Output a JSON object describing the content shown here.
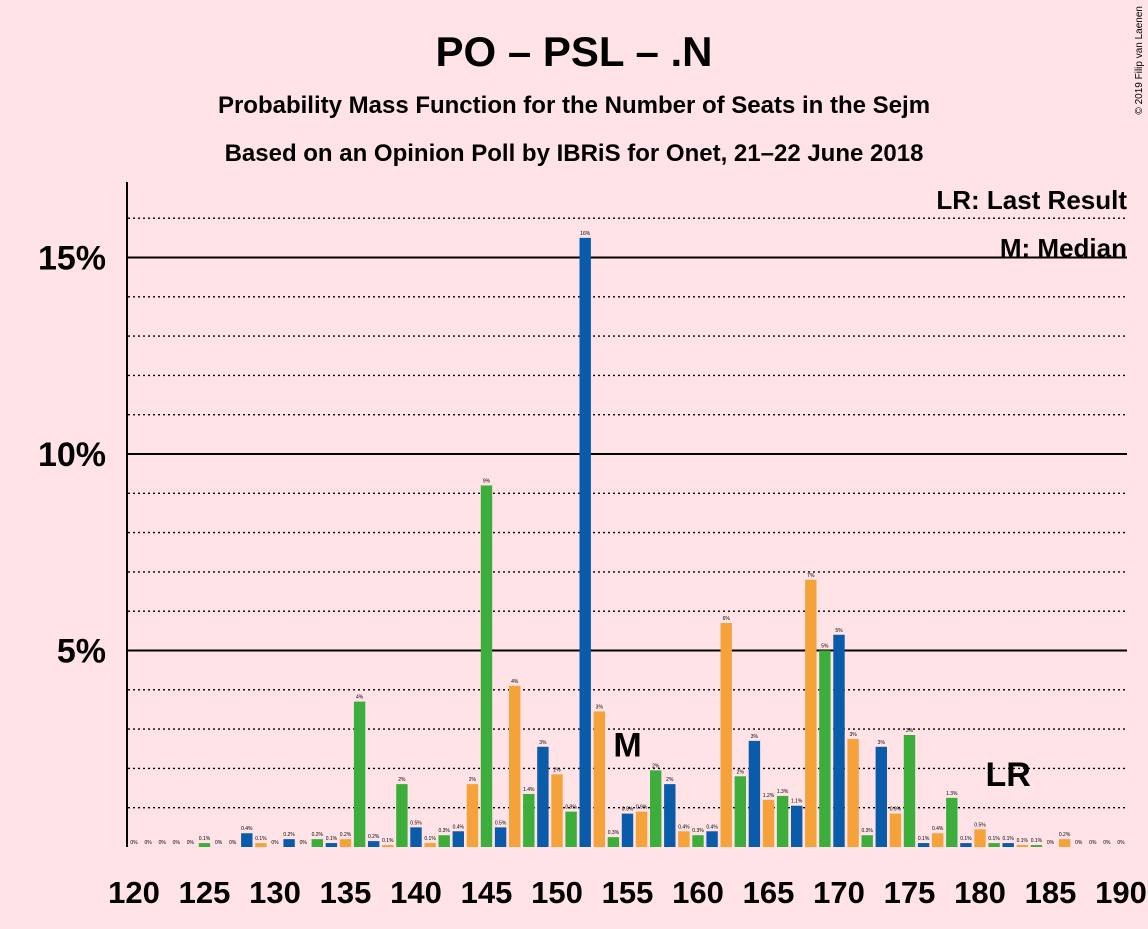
{
  "chart_data": {
    "type": "bar",
    "title": "PO – PSL – .N",
    "subtitle": "Probability Mass Function for the Number of Seats in the Sejm",
    "subtitle2": "Based on an Opinion Poll by IBRiS for Onet, 21–22 June 2018",
    "copyright": "© 2019 Filip van Laenen",
    "legend": {
      "lr": "LR: Last Result",
      "m": "M: Median",
      "placement": "top-right"
    },
    "ylim": [
      0,
      17
    ],
    "xlim": [
      120,
      190
    ],
    "grid": true,
    "y_ticks": [
      {
        "value": 5,
        "label": "5%"
      },
      {
        "value": 10,
        "label": "10%"
      },
      {
        "value": 15,
        "label": "15%"
      }
    ],
    "x_ticks": [
      {
        "value": 120,
        "label": "120"
      },
      {
        "value": 125,
        "label": "125"
      },
      {
        "value": 130,
        "label": "130"
      },
      {
        "value": 135,
        "label": "135"
      },
      {
        "value": 140,
        "label": "140"
      },
      {
        "value": 145,
        "label": "145"
      },
      {
        "value": 150,
        "label": "150"
      },
      {
        "value": 155,
        "label": "155"
      },
      {
        "value": 160,
        "label": "160"
      },
      {
        "value": 165,
        "label": "165"
      },
      {
        "value": 170,
        "label": "170"
      },
      {
        "value": 175,
        "label": "175"
      },
      {
        "value": 180,
        "label": "180"
      },
      {
        "value": 185,
        "label": "185"
      },
      {
        "value": 190,
        "label": "190"
      }
    ],
    "colors": {
      "blue": "#0A5CAA",
      "orange": "#F5A23B",
      "green": "#3DAE3B",
      "background": "#FFE3E6"
    },
    "series": [
      {
        "x": 120,
        "value": 0,
        "label": "0%",
        "color": "blue"
      },
      {
        "x": 121,
        "value": 0,
        "label": "0%",
        "color": "orange"
      },
      {
        "x": 122,
        "value": 0,
        "label": "0%",
        "color": "green"
      },
      {
        "x": 123,
        "value": 0,
        "label": "0%",
        "color": "blue"
      },
      {
        "x": 124,
        "value": 0,
        "label": "0%",
        "color": "orange"
      },
      {
        "x": 125,
        "value": 0.1,
        "label": "0.1%",
        "color": "green"
      },
      {
        "x": 126,
        "value": 0,
        "label": "0%",
        "color": "blue"
      },
      {
        "x": 127,
        "value": 0,
        "label": "0%",
        "color": "orange"
      },
      {
        "x": 128,
        "value": 0.35,
        "label": "0.4%",
        "color": "blue"
      },
      {
        "x": 129,
        "value": 0.1,
        "label": "0.1%",
        "color": "orange"
      },
      {
        "x": 130,
        "value": 0,
        "label": "0%",
        "color": "green"
      },
      {
        "x": 131,
        "value": 0.2,
        "label": "0.2%",
        "color": "blue"
      },
      {
        "x": 132,
        "value": 0,
        "label": "0%",
        "color": "orange"
      },
      {
        "x": 133,
        "value": 0.2,
        "label": "0.2%",
        "color": "green"
      },
      {
        "x": 134,
        "value": 0.1,
        "label": "0.1%",
        "color": "blue"
      },
      {
        "x": 135,
        "value": 0.2,
        "label": "0.2%",
        "color": "orange"
      },
      {
        "x": 136,
        "value": 3.7,
        "label": "4%",
        "color": "green"
      },
      {
        "x": 137,
        "value": 0.15,
        "label": "0.2%",
        "color": "blue"
      },
      {
        "x": 138,
        "value": 0.05,
        "label": "0.1%",
        "color": "orange"
      },
      {
        "x": 139,
        "value": 1.6,
        "label": "2%",
        "color": "green"
      },
      {
        "x": 140,
        "value": 0.5,
        "label": "0.5%",
        "color": "blue"
      },
      {
        "x": 141,
        "value": 0.1,
        "label": "0.1%",
        "color": "orange"
      },
      {
        "x": 142,
        "value": 0.3,
        "label": "0.3%",
        "color": "green"
      },
      {
        "x": 143,
        "value": 0.4,
        "label": "0.4%",
        "color": "blue"
      },
      {
        "x": 144,
        "value": 1.6,
        "label": "2%",
        "color": "orange"
      },
      {
        "x": 145,
        "value": 9.2,
        "label": "9%",
        "color": "green"
      },
      {
        "x": 146,
        "value": 0.5,
        "label": "0.5%",
        "color": "blue"
      },
      {
        "x": 147,
        "value": 4.1,
        "label": "4%",
        "color": "orange"
      },
      {
        "x": 148,
        "value": 1.35,
        "label": "1.4%",
        "color": "green"
      },
      {
        "x": 149,
        "value": 2.55,
        "label": "3%",
        "color": "blue"
      },
      {
        "x": 150,
        "value": 1.85,
        "label": "2%",
        "color": "orange"
      },
      {
        "x": 151,
        "value": 0.9,
        "label": "0.9%",
        "color": "green"
      },
      {
        "x": 152,
        "value": 15.5,
        "label": "16%",
        "color": "blue"
      },
      {
        "x": 153,
        "value": 3.45,
        "label": "3%",
        "color": "orange"
      },
      {
        "x": 154,
        "value": 0.25,
        "label": "0.3%",
        "color": "green"
      },
      {
        "x": 155,
        "value": 0.85,
        "label": "0.9%",
        "color": "blue"
      },
      {
        "x": 156,
        "value": 0.9,
        "label": "0.9%",
        "color": "orange"
      },
      {
        "x": 157,
        "value": 1.95,
        "label": "2%",
        "color": "green"
      },
      {
        "x": 158,
        "value": 1.6,
        "label": "2%",
        "color": "blue"
      },
      {
        "x": 159,
        "value": 0.4,
        "label": "0.4%",
        "color": "orange"
      },
      {
        "x": 160,
        "value": 0.3,
        "label": "0.3%",
        "color": "green"
      },
      {
        "x": 161,
        "value": 0.4,
        "label": "0.4%",
        "color": "blue"
      },
      {
        "x": 162,
        "value": 5.7,
        "label": "6%",
        "color": "orange"
      },
      {
        "x": 163,
        "value": 1.8,
        "label": "2%",
        "color": "green"
      },
      {
        "x": 164,
        "value": 2.7,
        "label": "3%",
        "color": "blue"
      },
      {
        "x": 165,
        "value": 1.2,
        "label": "1.2%",
        "color": "orange"
      },
      {
        "x": 166,
        "value": 1.3,
        "label": "1.3%",
        "color": "green"
      },
      {
        "x": 167,
        "value": 1.05,
        "label": "1.1%",
        "color": "blue"
      },
      {
        "x": 168,
        "value": 6.8,
        "label": "7%",
        "color": "orange"
      },
      {
        "x": 169,
        "value": 5.0,
        "label": "5%",
        "color": "green"
      },
      {
        "x": 170,
        "value": 5.4,
        "label": "5%",
        "color": "blue"
      },
      {
        "x": 171,
        "value": 2.75,
        "label": "3%",
        "color": "orange"
      },
      {
        "x": 172,
        "value": 0.3,
        "label": "0.3%",
        "color": "green"
      },
      {
        "x": 173,
        "value": 2.55,
        "label": "3%",
        "color": "blue"
      },
      {
        "x": 174,
        "value": 0.85,
        "label": "0.9%",
        "color": "orange"
      },
      {
        "x": 175,
        "value": 2.85,
        "label": "3%",
        "color": "green"
      },
      {
        "x": 176,
        "value": 0.1,
        "label": "0.1%",
        "color": "blue"
      },
      {
        "x": 177,
        "value": 0.35,
        "label": "0.4%",
        "color": "orange"
      },
      {
        "x": 178,
        "value": 1.25,
        "label": "1.3%",
        "color": "green"
      },
      {
        "x": 179,
        "value": 0.1,
        "label": "0.1%",
        "color": "blue"
      },
      {
        "x": 180,
        "value": 0.45,
        "label": "0.5%",
        "color": "orange"
      },
      {
        "x": 181,
        "value": 0.1,
        "label": "0.1%",
        "color": "green"
      },
      {
        "x": 182,
        "value": 0.1,
        "label": "0.1%",
        "color": "blue"
      },
      {
        "x": 183,
        "value": 0.05,
        "label": "0.1%",
        "color": "orange"
      },
      {
        "x": 184,
        "value": 0.05,
        "label": "0.1%",
        "color": "green"
      },
      {
        "x": 185,
        "value": 0,
        "label": "0%",
        "color": "blue"
      },
      {
        "x": 186,
        "value": 0.2,
        "label": "0.2%",
        "color": "orange"
      },
      {
        "x": 187,
        "value": 0,
        "label": "0%",
        "color": "green"
      },
      {
        "x": 188,
        "value": 0,
        "label": "0%",
        "color": "blue"
      },
      {
        "x": 189,
        "value": 0,
        "label": "0%",
        "color": "orange"
      },
      {
        "x": 190,
        "value": 0,
        "label": "0%",
        "color": "green"
      }
    ],
    "annotations": [
      {
        "text": "M",
        "x": 155,
        "y": 2.3,
        "meaning": "median"
      },
      {
        "text": "LR",
        "x": 182,
        "y": 1.55,
        "meaning": "last result"
      }
    ]
  }
}
